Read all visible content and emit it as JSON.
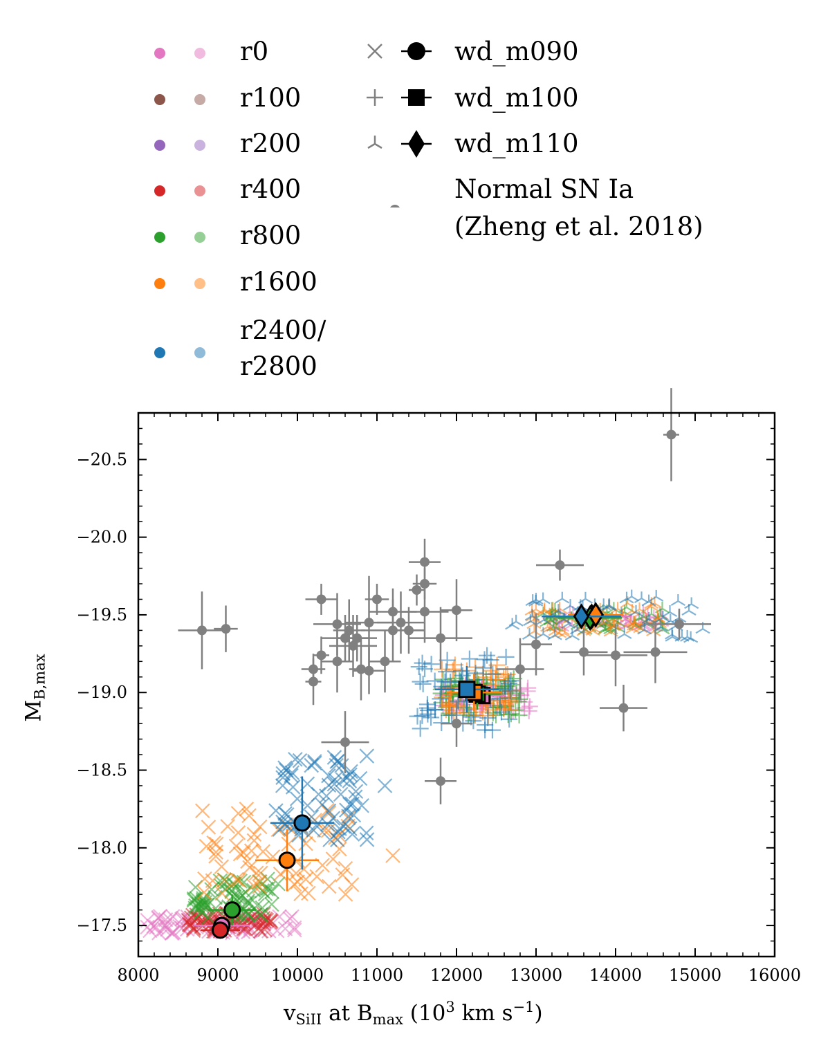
{
  "legend": {
    "runs": [
      {
        "label": "r0",
        "color": "#e377c2",
        "light": "#f1bbe0"
      },
      {
        "label": "r100",
        "color": "#8c564b",
        "light": "#c5aaa5"
      },
      {
        "label": "r200",
        "color": "#9467bd",
        "light": "#c9b3de"
      },
      {
        "label": "r400",
        "color": "#d62728",
        "light": "#ea9293"
      },
      {
        "label": "r800",
        "color": "#2ca02c",
        "light": "#95cf95"
      },
      {
        "label": "r1600",
        "color": "#ff7f0e",
        "light": "#ffbf86"
      },
      {
        "label_line1": "r2400/",
        "label_line2": "r2800",
        "color": "#1f77b4",
        "light": "#8fbbd9"
      }
    ],
    "models": [
      {
        "label": "wd_m090",
        "small_marker": "x",
        "marker": "circle"
      },
      {
        "label": "wd_m100",
        "small_marker": "+",
        "marker": "square"
      },
      {
        "label": "wd_m110",
        "small_marker": "tri_down",
        "marker": "diamond"
      }
    ],
    "observations": {
      "line1": "Normal SN Ia",
      "line2": "(Zheng et al. 2018)",
      "color": "#808080"
    }
  },
  "chart_data": {
    "type": "scatter",
    "xlabel_main": "v",
    "xlabel_sub": "SiII",
    "xlabel_mid": " at B",
    "xlabel_sub2": "max",
    "xlabel_unit": " (10",
    "xlabel_sup": "3",
    "xlabel_unit2": " km s",
    "xlabel_sup2": "−1",
    "xlabel_end": ")",
    "ylabel_main": "M",
    "ylabel_sub": "B,max",
    "xlim": [
      8000,
      16000
    ],
    "ylim": [
      -17.3,
      -20.8
    ],
    "xticks": [
      8000,
      9000,
      10000,
      11000,
      12000,
      13000,
      14000,
      15000,
      16000
    ],
    "xtick_labels": [
      "8000",
      "9000",
      "10000",
      "11000",
      "12000",
      "13000",
      "14000",
      "15000",
      "16000"
    ],
    "yticks": [
      -17.5,
      -18.0,
      -18.5,
      -19.0,
      -19.5,
      -20.0,
      -20.5
    ],
    "ytick_labels": [
      "−17.5",
      "−18.0",
      "−18.5",
      "−19.0",
      "−19.5",
      "−20.0",
      "−20.5"
    ],
    "observations": [
      {
        "v": 8800,
        "m": -19.4,
        "dv": 300,
        "dm": 0.25
      },
      {
        "v": 9100,
        "m": -19.41,
        "dv": 150,
        "dm": 0.15
      },
      {
        "v": 10200,
        "m": -19.15,
        "dv": 150,
        "dm": 0.1
      },
      {
        "v": 10200,
        "m": -19.07,
        "dv": 100,
        "dm": 0.15
      },
      {
        "v": 10300,
        "m": -19.6,
        "dv": 200,
        "dm": 0.1
      },
      {
        "v": 10300,
        "m": -19.24,
        "dv": 100,
        "dm": 0.12
      },
      {
        "v": 10500,
        "m": -19.44,
        "dv": 300,
        "dm": 0.2
      },
      {
        "v": 10500,
        "m": -19.2,
        "dv": 200,
        "dm": 0.2
      },
      {
        "v": 10600,
        "m": -19.35,
        "dv": 300,
        "dm": 0.15
      },
      {
        "v": 10650,
        "m": -19.4,
        "dv": 200,
        "dm": 0.2
      },
      {
        "v": 10700,
        "m": -19.3,
        "dv": 300,
        "dm": 0.2
      },
      {
        "v": 10750,
        "m": -19.35,
        "dv": 250,
        "dm": 0.15
      },
      {
        "v": 10800,
        "m": -19.15,
        "dv": 150,
        "dm": 0.2
      },
      {
        "v": 10900,
        "m": -19.14,
        "dv": 200,
        "dm": 0.15
      },
      {
        "v": 10900,
        "m": -19.45,
        "dv": 300,
        "dm": 0.3
      },
      {
        "v": 11000,
        "m": -19.6,
        "dv": 150,
        "dm": 0.1
      },
      {
        "v": 11100,
        "m": -19.2,
        "dv": 200,
        "dm": 0.2
      },
      {
        "v": 11200,
        "m": -19.4,
        "dv": 400,
        "dm": 0.2
      },
      {
        "v": 11200,
        "m": -19.52,
        "dv": 300,
        "dm": 0.15
      },
      {
        "v": 11300,
        "m": -19.45,
        "dv": 300,
        "dm": 0.2
      },
      {
        "v": 11400,
        "m": -19.4,
        "dv": 200,
        "dm": 0.15
      },
      {
        "v": 11500,
        "m": -19.66,
        "dv": 100,
        "dm": 0.1
      },
      {
        "v": 11600,
        "m": -19.84,
        "dv": 200,
        "dm": 0.15
      },
      {
        "v": 11600,
        "m": -19.7,
        "dv": 150,
        "dm": 0.1
      },
      {
        "v": 11600,
        "m": -19.52,
        "dv": 300,
        "dm": 0.2
      },
      {
        "v": 11800,
        "m": -19.35,
        "dv": 400,
        "dm": 0.2
      },
      {
        "v": 12000,
        "m": -19.53,
        "dv": 200,
        "dm": 0.2
      },
      {
        "v": 12000,
        "m": -18.8,
        "dv": 200,
        "dm": 0.15
      },
      {
        "v": 11800,
        "m": -18.43,
        "dv": 200,
        "dm": 0.15
      },
      {
        "v": 10600,
        "m": -18.68,
        "dv": 300,
        "dm": 0.2
      },
      {
        "v": 12800,
        "m": -19.15,
        "dv": 300,
        "dm": 0.2
      },
      {
        "v": 13000,
        "m": -19.31,
        "dv": 200,
        "dm": 0.2
      },
      {
        "v": 13300,
        "m": -19.82,
        "dv": 300,
        "dm": 0.1
      },
      {
        "v": 13600,
        "m": -19.26,
        "dv": 300,
        "dm": 0.15
      },
      {
        "v": 14000,
        "m": -19.24,
        "dv": 400,
        "dm": 0.2
      },
      {
        "v": 14100,
        "m": -18.9,
        "dv": 300,
        "dm": 0.15
      },
      {
        "v": 14500,
        "m": -19.26,
        "dv": 400,
        "dm": 0.2
      },
      {
        "v": 14700,
        "m": -20.66,
        "dv": 100,
        "dm": 0.3
      },
      {
        "v": 14800,
        "m": -19.44,
        "dv": 400,
        "dm": 0.1
      }
    ],
    "model_means": [
      {
        "model": "wd_m090",
        "run": "r0",
        "v": 9050,
        "m": -17.5,
        "dv": 350,
        "dm": 0.05
      },
      {
        "model": "wd_m090",
        "run": "r400",
        "v": 9030,
        "m": -17.47,
        "dv": 250,
        "dm": 0.05
      },
      {
        "model": "wd_m090",
        "run": "r800",
        "v": 9180,
        "m": -17.6,
        "dv": 300,
        "dm": 0.1
      },
      {
        "model": "wd_m090",
        "run": "r1600",
        "v": 9870,
        "m": -17.92,
        "dv": 400,
        "dm": 0.2
      },
      {
        "model": "wd_m090",
        "run": "r2400/r2800",
        "v": 10060,
        "m": -18.16,
        "dv": 400,
        "dm": 0.3
      },
      {
        "model": "wd_m100",
        "run": "r0",
        "v": 12320,
        "m": -18.98,
        "dv": 300,
        "dm": 0.1
      },
      {
        "model": "wd_m100",
        "run": "r800",
        "v": 12260,
        "m": -18.99,
        "dv": 300,
        "dm": 0.1
      },
      {
        "model": "wd_m100",
        "run": "r1600",
        "v": 12220,
        "m": -19.0,
        "dv": 350,
        "dm": 0.12
      },
      {
        "model": "wd_m100",
        "run": "r2400/r2800",
        "v": 12130,
        "m": -19.02,
        "dv": 400,
        "dm": 0.15
      },
      {
        "model": "wd_m110",
        "run": "r0",
        "v": 13700,
        "m": -19.49,
        "dv": 500,
        "dm": 0.05
      },
      {
        "model": "wd_m110",
        "run": "r800",
        "v": 13680,
        "m": -19.48,
        "dv": 400,
        "dm": 0.05
      },
      {
        "model": "wd_m110",
        "run": "r1600",
        "v": 13750,
        "m": -19.5,
        "dv": 350,
        "dm": 0.05
      },
      {
        "model": "wd_m110",
        "run": "r2400/r2800",
        "v": 13570,
        "m": -19.49,
        "dv": 500,
        "dm": 0.05
      }
    ],
    "model_clouds": [
      {
        "model": "wd_m090",
        "run": "r0",
        "v_range": [
          8100,
          10050
        ],
        "m_range": [
          -17.45,
          -17.56
        ]
      },
      {
        "model": "wd_m090",
        "run": "r400",
        "v_range": [
          8600,
          9700
        ],
        "m_range": [
          -17.46,
          -17.58
        ]
      },
      {
        "model": "wd_m090",
        "run": "r800",
        "v_range": [
          8700,
          9800
        ],
        "m_range": [
          -17.55,
          -17.8
        ]
      },
      {
        "model": "wd_m090",
        "run": "r1600",
        "v_range": [
          8800,
          10700
        ],
        "m_range": [
          -17.7,
          -18.25
        ]
      },
      {
        "model": "wd_m090",
        "run": "r2400/r2800",
        "v_range": [
          9700,
          10900
        ],
        "m_range": [
          -18.05,
          -18.6
        ]
      },
      {
        "model": "wd_m100",
        "run": "r0",
        "v_range": [
          11800,
          12950
        ],
        "m_range": [
          -18.88,
          -19.05
        ]
      },
      {
        "model": "wd_m100",
        "run": "r800",
        "v_range": [
          11800,
          12800
        ],
        "m_range": [
          -18.85,
          -19.1
        ]
      },
      {
        "model": "wd_m100",
        "run": "r1600",
        "v_range": [
          11800,
          12700
        ],
        "m_range": [
          -18.85,
          -19.2
        ]
      },
      {
        "model": "wd_m100",
        "run": "r2400/r2800",
        "v_range": [
          11500,
          12700
        ],
        "m_range": [
          -18.75,
          -19.25
        ]
      },
      {
        "model": "wd_m110",
        "run": "r0",
        "v_range": [
          13200,
          14600
        ],
        "m_range": [
          -19.42,
          -19.52
        ]
      },
      {
        "model": "wd_m110",
        "run": "r800",
        "v_range": [
          13000,
          14600
        ],
        "m_range": [
          -19.4,
          -19.55
        ]
      },
      {
        "model": "wd_m110",
        "run": "r1600",
        "v_range": [
          12900,
          14600
        ],
        "m_range": [
          -19.38,
          -19.58
        ]
      },
      {
        "model": "wd_m110",
        "run": "r2400/r2800",
        "v_range": [
          12700,
          15100
        ],
        "m_range": [
          -19.35,
          -19.62
        ]
      }
    ],
    "outliers": [
      {
        "model": "wd_m090",
        "run": "r2400/r2800",
        "v": 11100,
        "m": -18.4
      },
      {
        "model": "wd_m090",
        "run": "r1600",
        "v": 11200,
        "m": -17.95
      }
    ]
  }
}
